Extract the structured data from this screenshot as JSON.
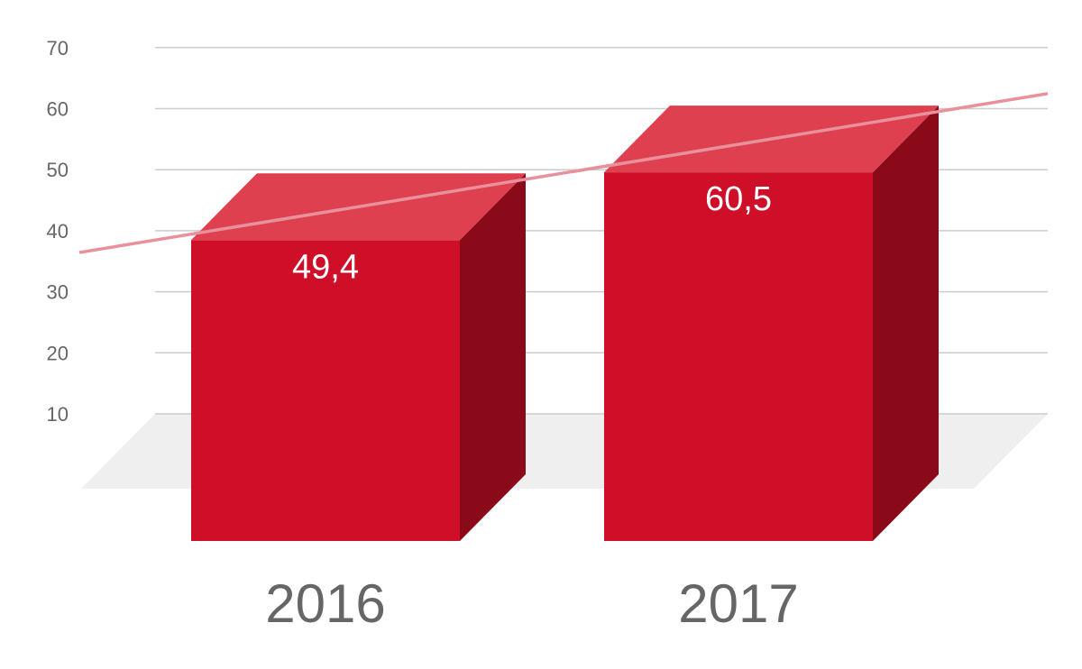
{
  "chart_data": {
    "type": "bar",
    "style": "3d",
    "categories": [
      "2016",
      "2017"
    ],
    "values": [
      49.4,
      60.5
    ],
    "data_labels": [
      "49,4",
      "60,5"
    ],
    "yticks": [
      10,
      20,
      30,
      40,
      50,
      60,
      70
    ],
    "ylim": [
      0,
      70
    ],
    "grid": true,
    "legend": "none",
    "trendline": true,
    "colors": {
      "bar_front": "#cf0f27",
      "bar_top": "#de4050",
      "bar_side": "#8b0a1a",
      "trendline": "#e8919c",
      "floor": "#efefef",
      "grid": "#cccccc",
      "text": "#666666"
    }
  }
}
